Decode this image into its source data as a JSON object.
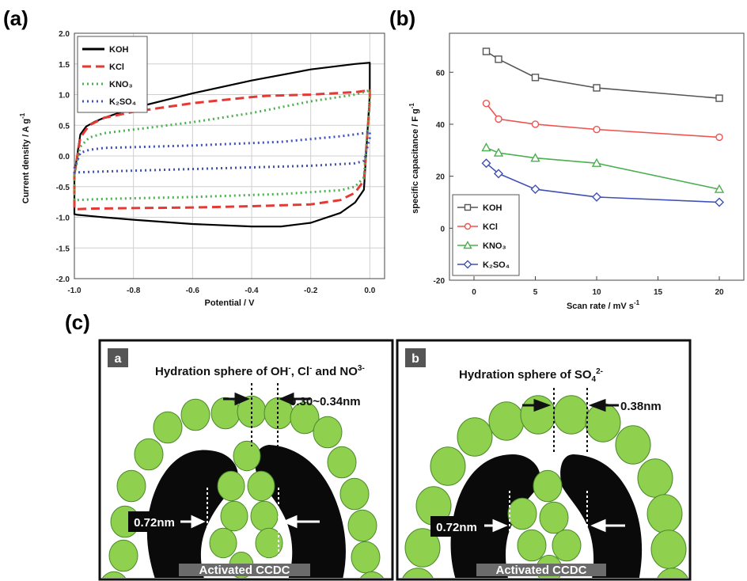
{
  "panels": {
    "a": "(a)",
    "b": "(b)",
    "c": "(c)"
  },
  "chart_data": [
    {
      "type": "line",
      "panel": "(a)",
      "xlabel": "Potential / V",
      "ylabel": "Current density / A g",
      "ylabel_sup": "-1",
      "xlim": [
        -1.0,
        0.05
      ],
      "ylim": [
        -2.0,
        2.0
      ],
      "xticks": [
        -1.0,
        -0.8,
        -0.6,
        -0.4,
        -0.2,
        0.0
      ],
      "xtick_labels": [
        "-1.0",
        "-0.8",
        "-0.6",
        "-0.4",
        "-0.2",
        "0.0"
      ],
      "yticks": [
        -2.0,
        -1.5,
        -1.0,
        -0.5,
        0.0,
        0.5,
        1.0,
        1.5,
        2.0
      ],
      "ytick_labels": [
        "-2.0",
        "-1.5",
        "-1.0",
        "-0.5",
        "0.0",
        "0.5",
        "1.0",
        "1.5",
        "2.0"
      ],
      "grid": true,
      "legend_position": "top-left",
      "series": [
        {
          "name": "KOH",
          "color": "#000000",
          "dash": "solid",
          "x": [
            -1.0,
            -0.98,
            -0.96,
            -0.93,
            -0.9,
            -0.8,
            -0.6,
            -0.4,
            -0.2,
            -0.05,
            0.0,
            0.0,
            -0.02,
            -0.05,
            -0.1,
            -0.2,
            -0.3,
            -0.4,
            -0.6,
            -0.8,
            -0.9,
            -0.99,
            -1.0,
            -1.0,
            -1.0
          ],
          "y": [
            -0.3,
            0.35,
            0.48,
            0.56,
            0.62,
            0.78,
            1.02,
            1.23,
            1.41,
            1.5,
            1.52,
            1.0,
            -0.55,
            -0.76,
            -0.93,
            -1.09,
            -1.15,
            -1.15,
            -1.11,
            -1.04,
            -1.0,
            -0.96,
            -0.95,
            -0.5,
            -0.3
          ]
        },
        {
          "name": "KCl",
          "color": "#e53935",
          "dash": "dashed",
          "x": [
            -1.0,
            -0.98,
            -0.95,
            -0.9,
            -0.8,
            -0.6,
            -0.4,
            -0.35,
            -0.2,
            -0.05,
            0.0,
            0.0,
            -0.02,
            -0.05,
            -0.1,
            -0.2,
            -0.4,
            -0.6,
            -0.8,
            -0.95,
            -1.0,
            -1.0
          ],
          "y": [
            -0.3,
            0.3,
            0.5,
            0.62,
            0.72,
            0.86,
            0.96,
            0.98,
            1.0,
            1.04,
            1.07,
            0.9,
            -0.4,
            -0.6,
            -0.72,
            -0.79,
            -0.82,
            -0.84,
            -0.85,
            -0.86,
            -0.87,
            -0.3
          ]
        },
        {
          "name": "KNO₃",
          "color": "#4caf50",
          "dash": "dotted",
          "x": [
            -1.0,
            -0.98,
            -0.95,
            -0.9,
            -0.8,
            -0.6,
            -0.4,
            -0.2,
            -0.05,
            0.0,
            0.0,
            -0.02,
            -0.05,
            -0.1,
            -0.3,
            -0.6,
            -0.9,
            -1.0,
            -1.0
          ],
          "y": [
            -0.3,
            0.15,
            0.3,
            0.37,
            0.43,
            0.55,
            0.7,
            0.89,
            1.0,
            1.07,
            0.9,
            -0.35,
            -0.5,
            -0.56,
            -0.62,
            -0.67,
            -0.7,
            -0.72,
            -0.3
          ]
        },
        {
          "name": "K₂SO₄",
          "color": "#3f51b5",
          "dash": "dotted",
          "x": [
            -1.0,
            -0.98,
            -0.95,
            -0.9,
            -0.6,
            -0.3,
            -0.1,
            -0.02,
            0.0,
            0.0,
            -0.02,
            -0.05,
            -0.2,
            -0.5,
            -0.8,
            -0.95,
            -1.0,
            -1.0
          ],
          "y": [
            -0.2,
            0.05,
            0.1,
            0.13,
            0.17,
            0.23,
            0.32,
            0.37,
            0.4,
            0.3,
            -0.08,
            -0.12,
            -0.16,
            -0.2,
            -0.24,
            -0.26,
            -0.27,
            -0.2
          ]
        }
      ]
    },
    {
      "type": "line",
      "panel": "(b)",
      "xlabel": "Scan rate / mV s",
      "xlabel_sup": "-1",
      "ylabel": "specific capacitance / F g",
      "ylabel_sup": "-1",
      "xlim": [
        -2,
        22
      ],
      "ylim": [
        -20,
        75
      ],
      "xticks": [
        0,
        5,
        10,
        15,
        20
      ],
      "xtick_labels": [
        "0",
        "5",
        "10",
        "15",
        "20"
      ],
      "yticks": [
        -20,
        0,
        20,
        40,
        60
      ],
      "ytick_labels": [
        "-20",
        "0",
        "20",
        "40",
        "60"
      ],
      "grid": false,
      "legend_position": "bottom-left",
      "x": [
        1,
        2,
        5,
        10,
        20
      ],
      "series": [
        {
          "name": "KOH",
          "color": "#555555",
          "marker": "square",
          "values": [
            68,
            65,
            58,
            54,
            50
          ]
        },
        {
          "name": "KCl",
          "color": "#ef5350",
          "marker": "circle",
          "values": [
            48,
            42,
            40,
            38,
            35
          ]
        },
        {
          "name": "KNO₃",
          "color": "#4caf50",
          "marker": "triangle",
          "values": [
            31,
            29,
            27,
            25,
            15
          ]
        },
        {
          "name": "K₂SO₄",
          "color": "#3f51b5",
          "marker": "diamond",
          "values": [
            25,
            21,
            15,
            12,
            10
          ]
        }
      ]
    }
  ],
  "diagram": {
    "left": {
      "tag": "a",
      "title": "Hydration sphere of OH",
      "title_sup1": "-",
      "title_mid1": ", Cl",
      "title_sup2": "-",
      "title_mid2": " and NO",
      "title_sup3": "3-",
      "top_gap": "0.30~0.34nm",
      "pore": "0.72nm",
      "base": "Activated CCDC"
    },
    "right": {
      "tag": "b",
      "title": "Hydration sphere of SO",
      "title_sub": "4",
      "title_sup": "2-",
      "top_gap": "0.38nm",
      "pore": "0.72nm",
      "base": "Activated CCDC"
    },
    "colors": {
      "sphere": "#8fd14f",
      "sphere_stroke": "#4a8a2a",
      "carbon": "#0a0a0a",
      "base_bar": "#6b6b6b"
    }
  }
}
